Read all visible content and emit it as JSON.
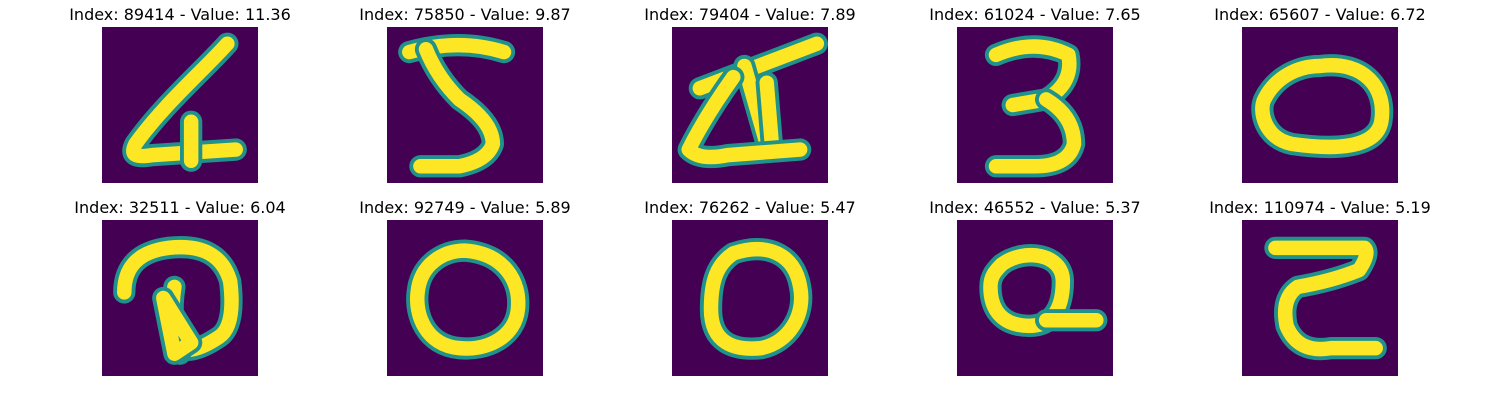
{
  "chart_data": {
    "type": "image-grid",
    "colors": {
      "background": "#440154",
      "foreground": "#fde725",
      "edge": "#21918c"
    },
    "panels": [
      {
        "title": "Index: 89414 - Value: 11.36",
        "index": 89414,
        "value": 11.36,
        "glyph": "4"
      },
      {
        "title": "Index: 75850 - Value: 9.87",
        "index": 75850,
        "value": 9.87,
        "glyph": "5"
      },
      {
        "title": "Index: 79404 - Value: 7.89",
        "index": 79404,
        "value": 7.89,
        "glyph": "4"
      },
      {
        "title": "Index: 61024 - Value: 7.65",
        "index": 61024,
        "value": 7.65,
        "glyph": "3"
      },
      {
        "title": "Index: 65607 - Value: 6.72",
        "index": 65607,
        "value": 6.72,
        "glyph": "0"
      },
      {
        "title": "Index: 32511 - Value: 6.04",
        "index": 32511,
        "value": 6.04,
        "glyph": "D"
      },
      {
        "title": "Index: 92749 - Value: 5.89",
        "index": 92749,
        "value": 5.89,
        "glyph": "0"
      },
      {
        "title": "Index: 76262 - Value: 5.47",
        "index": 76262,
        "value": 5.47,
        "glyph": "0"
      },
      {
        "title": "Index: 46552 - Value: 5.37",
        "index": 46552,
        "value": 5.37,
        "glyph": "Q"
      },
      {
        "title": "Index: 110974 - Value: 5.19",
        "index": 110974,
        "value": 5.19,
        "glyph": "Z"
      }
    ]
  }
}
